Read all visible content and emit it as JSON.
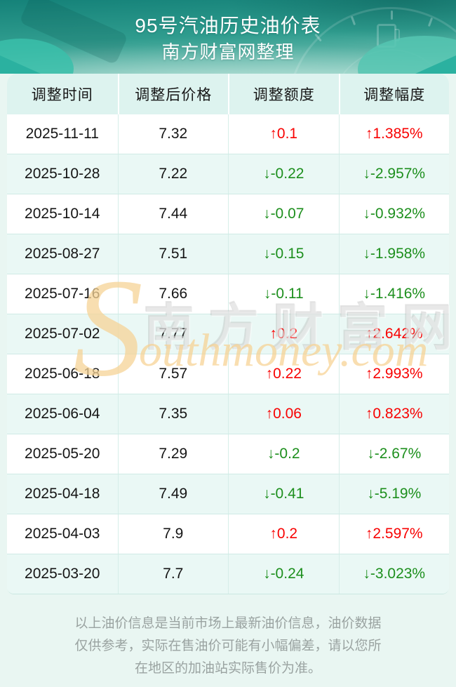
{
  "header": {
    "title_line1": "95号汽油历史油价表",
    "title_line2": "南方财富网整理"
  },
  "table": {
    "columns": [
      "调整时间",
      "调整后价格",
      "调整额度",
      "调整幅度"
    ],
    "rows": [
      {
        "date": "2025-11-11",
        "price": "7.32",
        "change": "↑0.1",
        "pct": "↑1.385%",
        "direction": "up"
      },
      {
        "date": "2025-10-28",
        "price": "7.22",
        "change": "↓-0.22",
        "pct": "↓-2.957%",
        "direction": "down"
      },
      {
        "date": "2025-10-14",
        "price": "7.44",
        "change": "↓-0.07",
        "pct": "↓-0.932%",
        "direction": "down"
      },
      {
        "date": "2025-08-27",
        "price": "7.51",
        "change": "↓-0.15",
        "pct": "↓-1.958%",
        "direction": "down"
      },
      {
        "date": "2025-07-16",
        "price": "7.66",
        "change": "↓-0.11",
        "pct": "↓-1.416%",
        "direction": "down"
      },
      {
        "date": "2025-07-02",
        "price": "7.77",
        "change": "↑0.2",
        "pct": "↑2.642%",
        "direction": "up"
      },
      {
        "date": "2025-06-18",
        "price": "7.57",
        "change": "↑0.22",
        "pct": "↑2.993%",
        "direction": "up"
      },
      {
        "date": "2025-06-04",
        "price": "7.35",
        "change": "↑0.06",
        "pct": "↑0.823%",
        "direction": "up"
      },
      {
        "date": "2025-05-20",
        "price": "7.29",
        "change": "↓-0.2",
        "pct": "↓-2.67%",
        "direction": "down"
      },
      {
        "date": "2025-04-18",
        "price": "7.49",
        "change": "↓-0.41",
        "pct": "↓-5.19%",
        "direction": "down"
      },
      {
        "date": "2025-04-03",
        "price": "7.9",
        "change": "↑0.2",
        "pct": "↑2.597%",
        "direction": "up"
      },
      {
        "date": "2025-03-20",
        "price": "7.7",
        "change": "↓-0.24",
        "pct": "↓-3.023%",
        "direction": "down"
      }
    ]
  },
  "watermark": {
    "big_s": "S",
    "cn_text": "南方财富网",
    "en_text": "outhmoney.com"
  },
  "footer": {
    "disclaimer": "以上油价信息是当前市场上最新油价信息，油价数据仅供参考，实际在售油价可能有小幅偏差，请以您所在地区的加油站实际售价为准。"
  },
  "colors": {
    "up": "#f80202",
    "down": "#1d8f1d",
    "accent_teal": "#2f9c8e"
  }
}
